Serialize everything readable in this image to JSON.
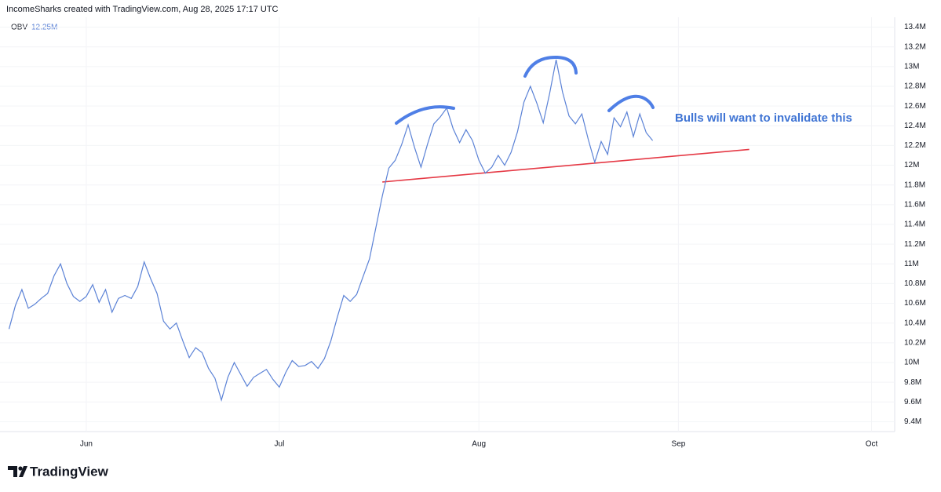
{
  "header": "IncomeSharks created with TradingView.com, Aug 28, 2025 17:17 UTC",
  "logo": "TradingView",
  "chart_data": {
    "type": "line",
    "legend_value": "12.25M",
    "annotation": "Bulls will want to invalidate this",
    "trendline": {
      "color": "#e53945",
      "x": [
        46,
        103
      ],
      "values": [
        11.83,
        12.16
      ]
    },
    "x": [
      -12,
      -11,
      -10,
      -9,
      -8,
      -7,
      -6,
      -5,
      -4,
      -3,
      -2,
      -1,
      0,
      1,
      2,
      3,
      4,
      5,
      6,
      7,
      8,
      9,
      10,
      11,
      12,
      13,
      14,
      15,
      16,
      17,
      18,
      19,
      20,
      21,
      22,
      23,
      24,
      25,
      26,
      27,
      28,
      29,
      30,
      31,
      32,
      33,
      34,
      35,
      36,
      37,
      38,
      39,
      40,
      41,
      42,
      43,
      44,
      45,
      46,
      47,
      48,
      49,
      50,
      51,
      52,
      53,
      54,
      55,
      56,
      57,
      58,
      59,
      60,
      61,
      62,
      63,
      64,
      65,
      66,
      67,
      68,
      69,
      70,
      71,
      72,
      73,
      74,
      75,
      76,
      77,
      78,
      79,
      80,
      81,
      82,
      83,
      84,
      85,
      86,
      87,
      88
    ],
    "series": [
      {
        "name": "OBV",
        "color": "#5b82d6",
        "values": [
          10.34,
          10.58,
          10.74,
          10.55,
          10.59,
          10.65,
          10.7,
          10.88,
          11.0,
          10.8,
          10.67,
          10.62,
          10.67,
          10.79,
          10.61,
          10.74,
          10.51,
          10.65,
          10.68,
          10.65,
          10.77,
          11.02,
          10.85,
          10.7,
          10.42,
          10.34,
          10.4,
          10.22,
          10.05,
          10.15,
          10.1,
          9.94,
          9.84,
          9.62,
          9.85,
          10.0,
          9.88,
          9.76,
          9.85,
          9.89,
          9.93,
          9.83,
          9.75,
          9.9,
          10.02,
          9.96,
          9.97,
          10.01,
          9.94,
          10.04,
          10.22,
          10.46,
          10.68,
          10.62,
          10.69,
          10.87,
          11.05,
          11.37,
          11.69,
          11.97,
          12.05,
          12.21,
          12.41,
          12.18,
          11.98,
          12.21,
          12.42,
          12.49,
          12.58,
          12.37,
          12.23,
          12.36,
          12.25,
          12.05,
          11.92,
          11.98,
          12.1,
          12.0,
          12.13,
          12.34,
          12.64,
          12.8,
          12.63,
          12.43,
          12.73,
          13.07,
          12.74,
          12.5,
          12.42,
          12.52,
          12.26,
          12.03,
          12.24,
          12.11,
          12.48,
          12.39,
          12.54,
          12.29,
          12.52,
          12.33,
          12.25
        ]
      }
    ],
    "xlim": [
      -13.4,
      125.6
    ],
    "xticks": [
      {
        "value": 0,
        "label": "Jun"
      },
      {
        "value": 30,
        "label": "Jul"
      },
      {
        "value": 61,
        "label": "Aug"
      },
      {
        "value": 92,
        "label": "Sep"
      },
      {
        "value": 122,
        "label": "Oct"
      }
    ],
    "ylim": [
      9.3,
      13.5
    ],
    "yticks": [
      {
        "value": 9.4,
        "label": "9.4M"
      },
      {
        "value": 9.6,
        "label": "9.6M"
      },
      {
        "value": 9.8,
        "label": "9.8M"
      },
      {
        "value": 10,
        "label": "10M"
      },
      {
        "value": 10.2,
        "label": "10.2M"
      },
      {
        "value": 10.4,
        "label": "10.4M"
      },
      {
        "value": 10.6,
        "label": "10.6M"
      },
      {
        "value": 10.8,
        "label": "10.8M"
      },
      {
        "value": 11,
        "label": "11M"
      },
      {
        "value": 11.2,
        "label": "11.2M"
      },
      {
        "value": 11.4,
        "label": "11.4M"
      },
      {
        "value": 11.6,
        "label": "11.6M"
      },
      {
        "value": 11.8,
        "label": "11.8M"
      },
      {
        "value": 12,
        "label": "12M"
      },
      {
        "value": 12.2,
        "label": "12.2M"
      },
      {
        "value": 12.4,
        "label": "12.4M"
      },
      {
        "value": 12.6,
        "label": "12.6M"
      },
      {
        "value": 12.8,
        "label": "12.8M"
      },
      {
        "value": 13,
        "label": "13M"
      },
      {
        "value": 13.2,
        "label": "13.2M"
      },
      {
        "value": 13.4,
        "label": "13.4M"
      }
    ],
    "grid": true
  }
}
